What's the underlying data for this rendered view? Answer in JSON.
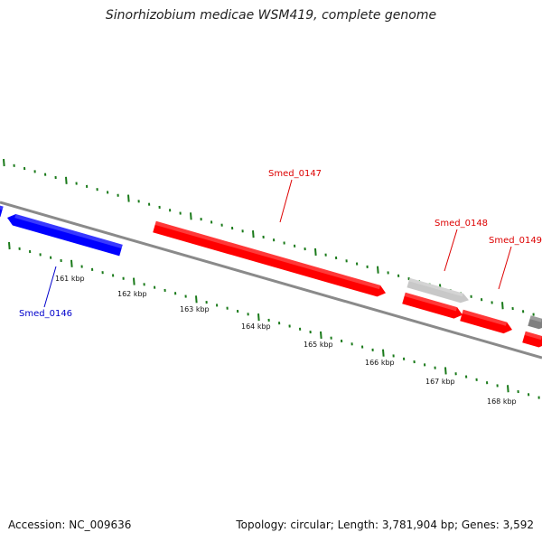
{
  "title": "Sinorhizobium medicae WSM419, complete genome",
  "footer": {
    "accession": "Accession: NC_009636",
    "summary": "Topology: circular; Length: 3,781,904 bp; Genes: 3,592"
  },
  "colors": {
    "backbone": "#7a7a7a",
    "tick": "#1a7a1a",
    "forward_gene": "#ff0000",
    "reverse_gene": "#0000ff",
    "pseudo_gene": "#c8c8c8",
    "other_gene": "#808080"
  },
  "ticks": [
    {
      "label": "161 kbp"
    },
    {
      "label": "162 kbp"
    },
    {
      "label": "163 kbp"
    },
    {
      "label": "164 kbp"
    },
    {
      "label": "165 kbp"
    },
    {
      "label": "166 kbp"
    },
    {
      "label": "167 kbp"
    },
    {
      "label": "168 kbp"
    }
  ],
  "genes": [
    {
      "name": "",
      "strand": "reverse",
      "color": "#0000ff"
    },
    {
      "name": "Smed_0146",
      "strand": "reverse",
      "color": "#0000ff",
      "label_color": "#0000cc"
    },
    {
      "name": "Smed_0147",
      "strand": "forward",
      "color": "#ff0000",
      "label_color": "#dd0000"
    },
    {
      "name": "Smed_0148",
      "strand": "forward",
      "color": "#c8c8c8",
      "label_color": "#dd0000"
    },
    {
      "name": "",
      "strand": "forward",
      "color": "#ff0000"
    },
    {
      "name": "Smed_0149",
      "strand": "forward",
      "color": "#ff0000",
      "label_color": "#dd0000"
    },
    {
      "name": "",
      "strand": "forward",
      "color": "#808080"
    },
    {
      "name": "",
      "strand": "forward",
      "color": "#ff0000"
    }
  ]
}
